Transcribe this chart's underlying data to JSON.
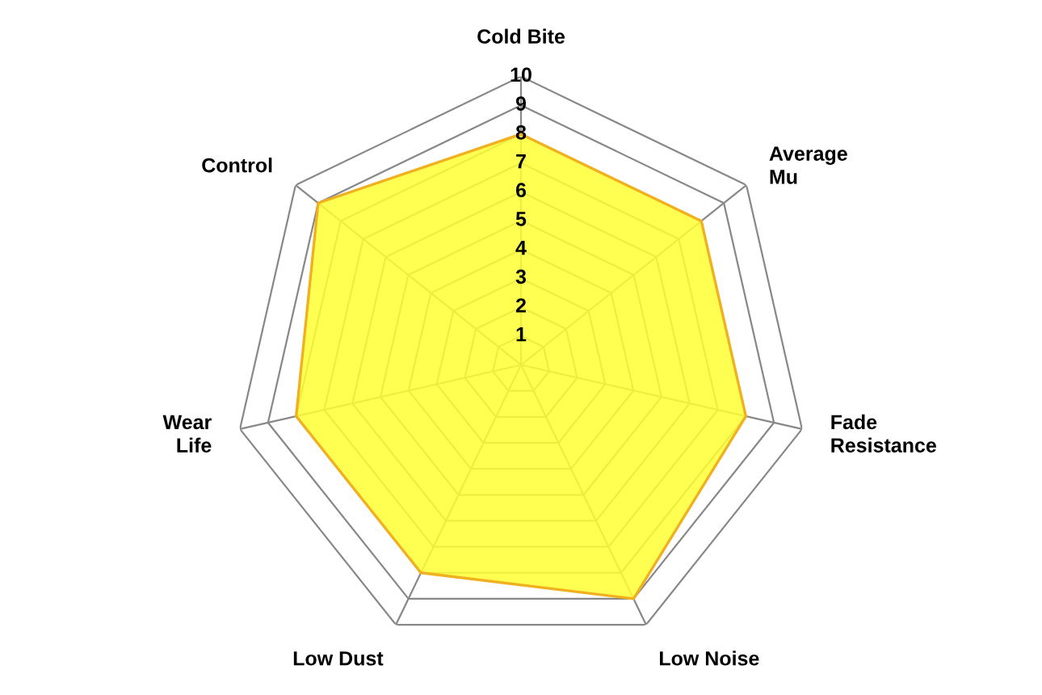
{
  "chart_data": {
    "type": "radar",
    "categories": [
      "Cold Bite",
      "Average\nMu",
      "Fade\nResistance",
      "Low Noise",
      "Low Dust",
      "Wear\nLife",
      "Control"
    ],
    "series": [
      {
        "color": "#ffff33",
        "values": [
          8,
          8,
          8,
          9,
          8,
          8,
          9
        ]
      }
    ],
    "ylim": [
      0,
      10
    ],
    "yticks": [
      1,
      2,
      3,
      4,
      5,
      6,
      7,
      8,
      9,
      10
    ],
    "grid": true
  }
}
